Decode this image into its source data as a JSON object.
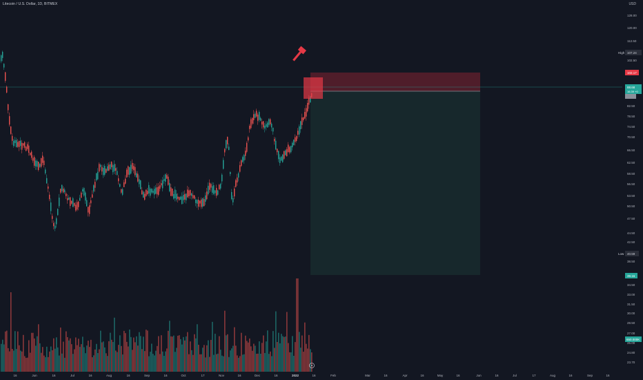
{
  "header": {
    "symbol_title": "Litecoin / U.S. Dollar, 1D, BITMEX",
    "currency": "USD"
  },
  "price_axis": {
    "ticks": [
      "128.00",
      "120.00",
      "112.50",
      "102.50",
      "82.50",
      "78.50",
      "74.50",
      "70.50",
      "66.50",
      "62.50",
      "58.50",
      "56.50",
      "53.50",
      "50.50",
      "47.50",
      "44.50",
      "42.50",
      "38.50",
      "34.50",
      "33.00",
      "31.50",
      "30.00",
      "28.50",
      "27.00",
      "26.00",
      "24.80",
      "23.70"
    ],
    "high_label": "High",
    "high_value": "107.24",
    "low_label": "Low",
    "low_value": "40.59",
    "stop_value": "102.17",
    "current_price": "88.68",
    "current_change": "16.39 +0",
    "target_value": "39.16",
    "volume_value": "650.000K"
  },
  "time_axis": {
    "labels": [
      "16",
      "Jun",
      "16",
      "Jul",
      "16",
      "Aug",
      "16",
      "Sep",
      "16",
      "Oct",
      "17",
      "Nov",
      "16",
      "Dec",
      "16",
      "2022",
      "16",
      "Feb",
      "Mar",
      "16",
      "Apr",
      "16",
      "May",
      "16",
      "Jun",
      "16",
      "Jul",
      "17",
      "Aug",
      "16",
      "Sep",
      "16"
    ]
  },
  "colors": {
    "background": "#131722",
    "up": "#26a69a",
    "down": "#ef5350",
    "stop_zone": "#5b1f2b",
    "target_zone": "#17292d",
    "hammer": "#e53946"
  },
  "overlay": {
    "icon": "hammer-icon",
    "button_icon": "gear-icon"
  },
  "chart_data": {
    "type": "candlestick",
    "candles_count": 230,
    "price_range": [
      23.7,
      128
    ],
    "position": {
      "side": "short",
      "entry": 88.68,
      "stop": 102.17,
      "target": 39.16
    }
  }
}
